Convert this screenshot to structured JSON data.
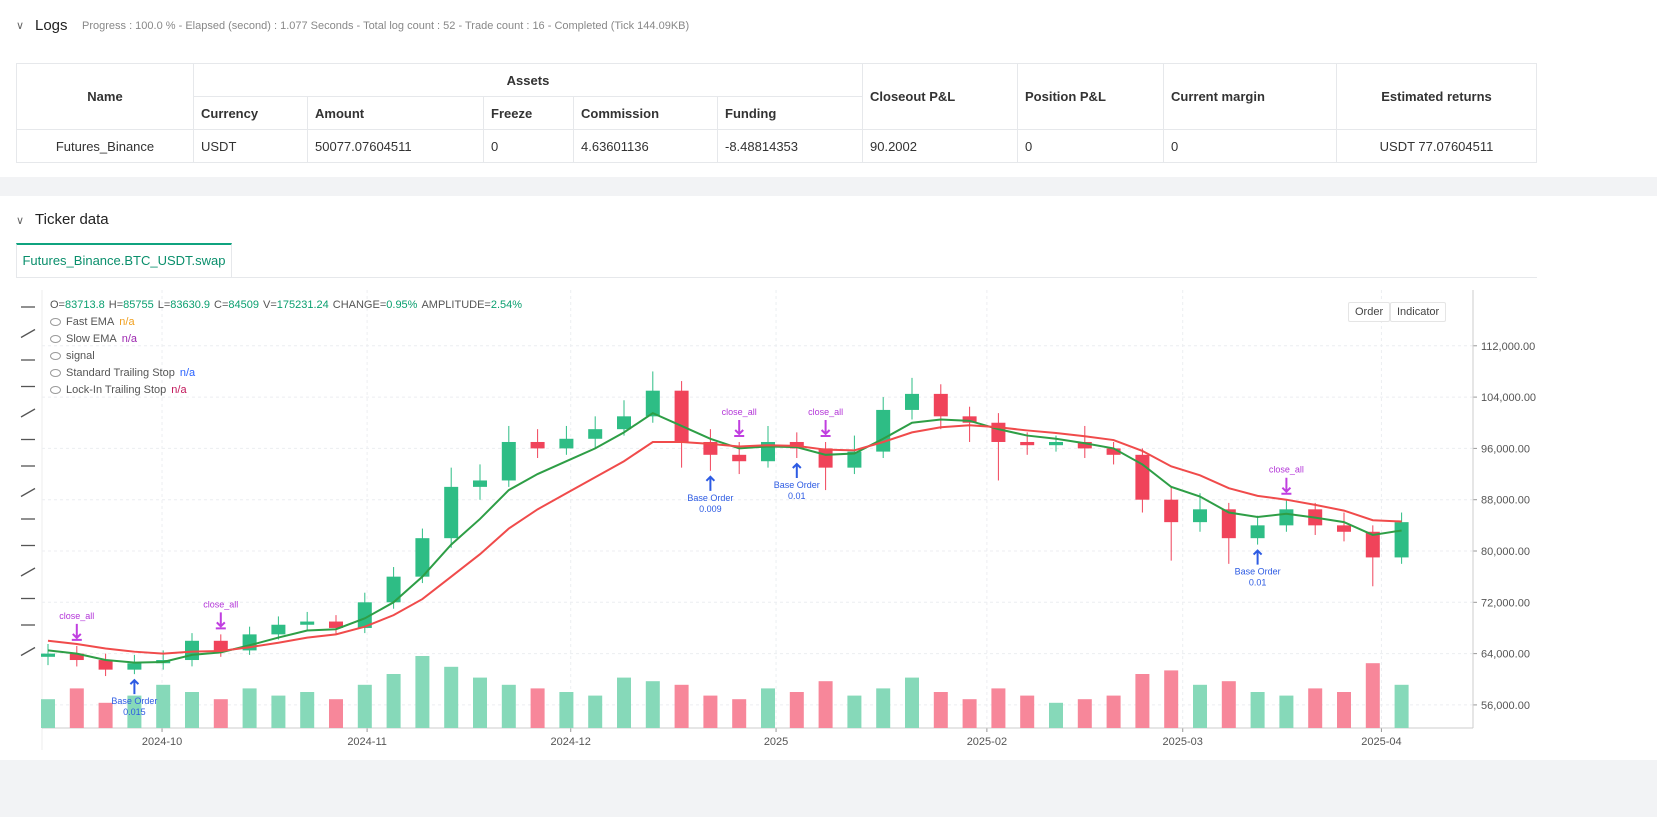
{
  "logs": {
    "title": "Logs",
    "status": "Progress : 100.0 % - Elapsed (second) : 1.077 Seconds - Total log count : 52 - Trade count : 16 - Completed (Tick 144.09KB)",
    "columns": {
      "name": "Name",
      "assets": "Assets",
      "sub": [
        "Currency",
        "Amount",
        "Freeze",
        "Commission",
        "Funding"
      ],
      "rest": [
        "Closeout P&L",
        "Position P&L",
        "Current margin",
        "Estimated returns"
      ]
    },
    "rows": [
      [
        "Futures_Binance",
        "USDT",
        "50077.07604511",
        "0",
        "4.63601136",
        "-8.48814353",
        "90.2002",
        "0",
        "0",
        "USDT 77.07604511"
      ]
    ]
  },
  "ticker": {
    "title": "Ticker data",
    "tab": "Futures_Binance.BTC_USDT.swap",
    "buttons": [
      "Order",
      "Indicator"
    ]
  },
  "chart_data": {
    "type": "candlestick",
    "info": [
      [
        "O=",
        "83713.8"
      ],
      [
        "H=",
        "85755"
      ],
      [
        "L=",
        "83630.9"
      ],
      [
        "C=",
        "84509"
      ],
      [
        "V=",
        "175231.24"
      ],
      [
        "CHANGE=",
        "0.95%"
      ],
      [
        "AMPLITUDE=",
        "2.54%"
      ]
    ],
    "indicators": [
      {
        "name": "Fast EMA",
        "value": "n/a",
        "color": "#f0a020"
      },
      {
        "name": "Slow EMA",
        "value": "n/a",
        "color": "#9c27b0"
      },
      {
        "name": "signal"
      },
      {
        "name": "Standard Trailing Stop",
        "value": "n/a",
        "color": "#2962ff"
      },
      {
        "name": "Lock-In Trailing Stop",
        "value": "n/a",
        "color": "#c2185b"
      }
    ],
    "categories": [
      null,
      null,
      null,
      null,
      null,
      null,
      null,
      null,
      null,
      null,
      null,
      null,
      null,
      null,
      null,
      null,
      null,
      null,
      null,
      null,
      null,
      null,
      null,
      null,
      null,
      null,
      null,
      null,
      null,
      null,
      null,
      null,
      null,
      null,
      null,
      null,
      null,
      null,
      null,
      null,
      null,
      null,
      null,
      null,
      null,
      null,
      null,
      null
    ],
    "open": [
      63500,
      64000,
      63000,
      61500,
      62500,
      63000,
      66000,
      64500,
      67000,
      68500,
      69000,
      68000,
      72000,
      76000,
      82000,
      90000,
      91000,
      97000,
      96000,
      97500,
      99000,
      101000,
      105000,
      97000,
      95000,
      94000,
      97000,
      96000,
      93000,
      95500,
      102000,
      104500,
      101000,
      100000,
      97000,
      96500,
      97000,
      96000,
      95000,
      88000,
      84500,
      86500,
      82000,
      84000,
      86500,
      84000,
      83000,
      79000
    ],
    "high": [
      65500,
      65200,
      64000,
      63800,
      64500,
      67200,
      67000,
      68200,
      69800,
      70500,
      70000,
      73500,
      77500,
      83500,
      93000,
      93500,
      99500,
      99000,
      99500,
      101000,
      103500,
      108000,
      106500,
      99000,
      97000,
      99500,
      98500,
      97000,
      98000,
      104000,
      107000,
      106000,
      102500,
      101500,
      98500,
      98000,
      99500,
      97000,
      96000,
      90000,
      89000,
      87500,
      85500,
      88000,
      87500,
      86000,
      84000,
      86000
    ],
    "low": [
      62200,
      62000,
      60500,
      60800,
      61500,
      62000,
      63500,
      63800,
      66200,
      67500,
      67000,
      67200,
      71000,
      75000,
      80500,
      88000,
      90000,
      94500,
      95000,
      96000,
      98000,
      100000,
      93000,
      92500,
      92000,
      93000,
      94500,
      89500,
      92000,
      94500,
      100500,
      99000,
      97000,
      91000,
      95000,
      95500,
      94500,
      93500,
      86000,
      78500,
      83000,
      78000,
      81000,
      83000,
      82500,
      81500,
      74500,
      78000
    ],
    "close": [
      64000,
      63000,
      61500,
      62500,
      63000,
      66000,
      64500,
      67000,
      68500,
      69000,
      68000,
      72000,
      76000,
      82000,
      90000,
      91000,
      97000,
      96000,
      97500,
      99000,
      101000,
      105000,
      97000,
      95000,
      94000,
      97000,
      96000,
      93000,
      95500,
      102000,
      104500,
      101000,
      100000,
      97000,
      96500,
      97000,
      96000,
      95000,
      88000,
      84500,
      86500,
      82000,
      84000,
      86500,
      84000,
      83000,
      79000,
      84500
    ],
    "volume": [
      40,
      55,
      35,
      45,
      60,
      50,
      40,
      55,
      45,
      50,
      40,
      60,
      75,
      100,
      85,
      70,
      60,
      55,
      50,
      45,
      70,
      65,
      60,
      45,
      40,
      55,
      50,
      65,
      45,
      55,
      70,
      50,
      40,
      55,
      45,
      35,
      40,
      45,
      75,
      80,
      60,
      65,
      50,
      45,
      55,
      50,
      90,
      60
    ],
    "volume_ylim": [
      0,
      100
    ],
    "up_color": "#2ebd85",
    "down_color": "#f0435a",
    "up_volume_color": "#86d9b9",
    "down_volume_color": "#f7879a",
    "series": [
      {
        "name": "Fast EMA",
        "color": "#2e9e46",
        "values": [
          64500,
          64000,
          63000,
          62600,
          62700,
          63800,
          64200,
          65300,
          66500,
          67600,
          67800,
          69500,
          72000,
          76000,
          81000,
          85000,
          89500,
          92000,
          94000,
          96000,
          98500,
          101500,
          99500,
          97500,
          96000,
          96300,
          96200,
          95000,
          95200,
          97500,
          100000,
          100500,
          100300,
          99000,
          98000,
          97500,
          96800,
          96000,
          93500,
          90000,
          88500,
          86000,
          85300,
          85800,
          85200,
          84500,
          82500,
          83200
        ]
      },
      {
        "name": "Slow EMA",
        "color": "#f04b4b",
        "values": [
          66000,
          65500,
          64800,
          64300,
          64000,
          64300,
          64400,
          65000,
          65700,
          66500,
          67000,
          68200,
          70000,
          72500,
          76000,
          79500,
          83500,
          86500,
          89000,
          91500,
          94000,
          97000,
          97000,
          96700,
          96300,
          96500,
          96400,
          95800,
          95700,
          97000,
          98500,
          99300,
          99600,
          99300,
          98800,
          98400,
          97900,
          97300,
          95600,
          93200,
          91800,
          89800,
          88600,
          88000,
          87200,
          86300,
          84800,
          84600
        ]
      }
    ],
    "annotations": [
      {
        "text": "close_all",
        "at": 1
      },
      {
        "text": "close_all",
        "at": 6
      },
      {
        "text": "close_all",
        "at": 24
      },
      {
        "text": "close_all",
        "at": 27
      },
      {
        "text": "close_all",
        "at": 43
      },
      {
        "text": "Base Order",
        "qty": 0.015,
        "at": 3
      },
      {
        "text": "Base Order",
        "qty": 0.009,
        "at": 23
      },
      {
        "text": "Base Order",
        "qty": 0.01,
        "at": 26
      },
      {
        "text": "Base Order",
        "qty": 0.01,
        "at": 42
      }
    ],
    "ylim": [
      52400,
      120700
    ],
    "yticks": [
      {
        "value": 56000,
        "label": "56,000.00"
      },
      {
        "value": 64000,
        "label": "64,000.00"
      },
      {
        "value": 72000,
        "label": "72,000.00"
      },
      {
        "value": 80000,
        "label": "80,000.00"
      },
      {
        "value": 88000,
        "label": "88,000.00"
      },
      {
        "value": 96000,
        "label": "96,000.00"
      },
      {
        "value": 104000,
        "label": "104,000.00"
      },
      {
        "value": 112000,
        "label": "112,000.00"
      }
    ],
    "xticks": [
      {
        "value": 3.96,
        "label": "2024-10"
      },
      {
        "value": 11.08,
        "label": "2024-11"
      },
      {
        "value": 18.15,
        "label": "2024-12"
      },
      {
        "value": 25.28,
        "label": "2025"
      },
      {
        "value": 32.6,
        "label": "2025-02"
      },
      {
        "value": 39.4,
        "label": "2025-03"
      },
      {
        "value": 46.3,
        "label": "2025-04"
      }
    ],
    "grid": true
  }
}
